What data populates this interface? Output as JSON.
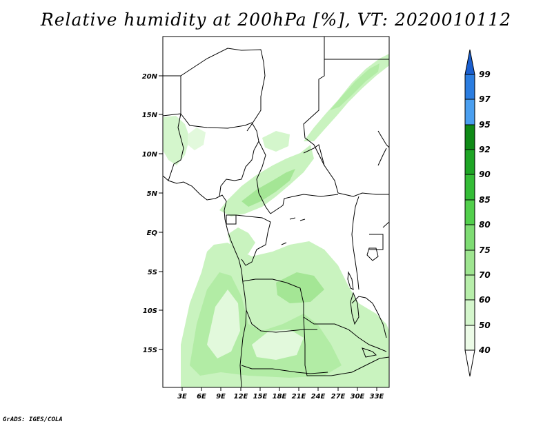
{
  "title": "Relative humidity at 200hPa [%], VT: 2020010112",
  "credit": "GrADS: IGES/COLA",
  "map": {
    "lat_labels": [
      "20N",
      "15N",
      "10N",
      "5N",
      "EQ",
      "5S",
      "10S",
      "15S"
    ],
    "lon_labels": [
      "3E",
      "6E",
      "9E",
      "12E",
      "15E",
      "18E",
      "21E",
      "24E",
      "27E",
      "30E",
      "33E"
    ]
  },
  "colorbar": {
    "labels": [
      "99",
      "97",
      "95",
      "92",
      "90",
      "85",
      "80",
      "75",
      "70",
      "60",
      "50",
      "40"
    ],
    "colors": [
      "#1a5fcf",
      "#2b7de0",
      "#4a9ff0",
      "#0f8a16",
      "#1ea525",
      "#34bc36",
      "#52cf4c",
      "#7edc73",
      "#9ee590",
      "#b7eeaa",
      "#d4f6cc",
      "#ecfbe7"
    ]
  }
}
